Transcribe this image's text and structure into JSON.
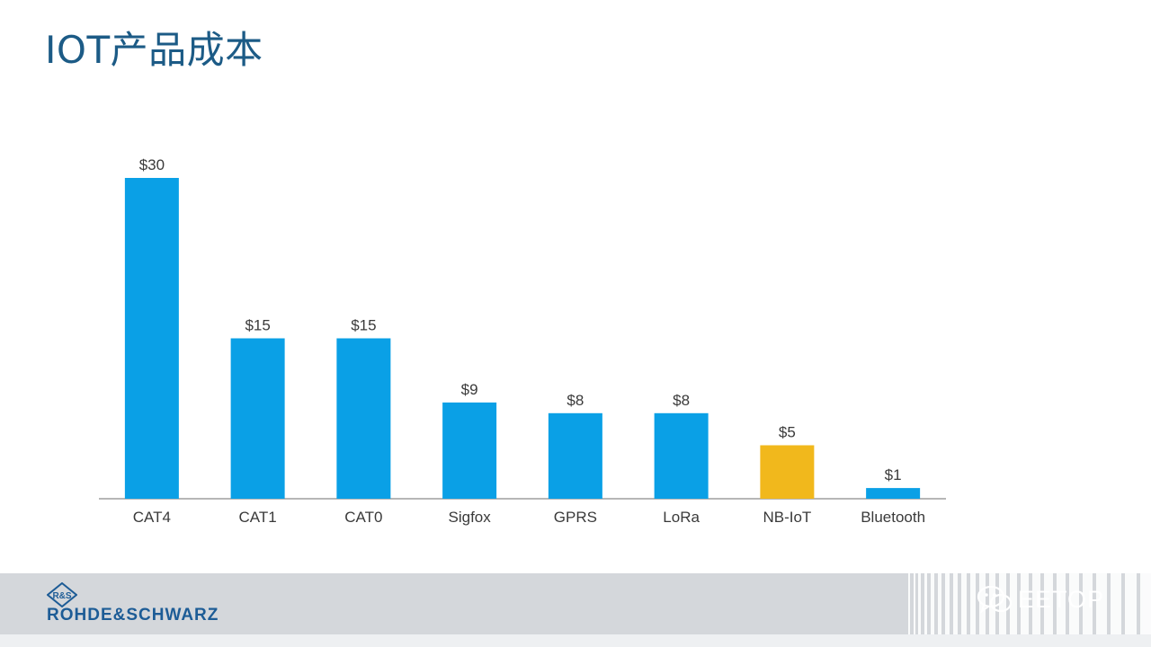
{
  "title": "IOT产品成本",
  "chart_data": {
    "type": "bar",
    "title": "IOT产品成本",
    "categories": [
      "CAT4",
      "CAT1",
      "CAT0",
      "Sigfox",
      "GPRS",
      "LoRa",
      "NB-IoT",
      "Bluetooth"
    ],
    "values": [
      30,
      15,
      15,
      9,
      8,
      8,
      5,
      1
    ],
    "data_labels": [
      "$30",
      "$15",
      "$15",
      "$9",
      "$8",
      "$8",
      "$5",
      "$1"
    ],
    "highlight_category": "NB-IoT",
    "colors": {
      "default": "#0aa0e6",
      "highlight": "#f1b81c"
    },
    "xlabel": "",
    "ylabel": "",
    "ylim": [
      0,
      30
    ],
    "grid": false
  },
  "footer": {
    "brand": "ROHDE&SCHWARZ",
    "logo_mark": "R&S",
    "watermark_text": "EETOP",
    "watermark_icon": "wechat-icon"
  }
}
